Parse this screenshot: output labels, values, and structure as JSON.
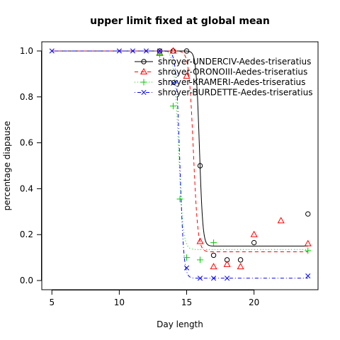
{
  "chart_data": {
    "type": "scatter",
    "title": "upper limit fixed at global mean",
    "xlabel": "Day length",
    "ylabel": "percentage diapause",
    "xlim": [
      4.25,
      24.75
    ],
    "ylim": [
      -0.04,
      1.04
    ],
    "x_ticks": [
      5,
      10,
      15,
      20
    ],
    "y_ticks": [
      0.0,
      0.2,
      0.4,
      0.6,
      0.8,
      1.0
    ],
    "legend_position": "top-right",
    "series": [
      {
        "name": "shroyer-UNDERCIV-Aedes-triseratius",
        "color": "#000000",
        "marker": "circle",
        "line_style": "solid",
        "fit": {
          "upper": 1.0,
          "lower": 0.15,
          "midpoint": 15.95,
          "slope": 8.0
        },
        "points": [
          {
            "x": 13,
            "y": 1.0
          },
          {
            "x": 14,
            "y": 1.0
          },
          {
            "x": 15,
            "y": 1.0
          },
          {
            "x": 16,
            "y": 0.5
          },
          {
            "x": 17,
            "y": 0.11
          },
          {
            "x": 18,
            "y": 0.09
          },
          {
            "x": 19,
            "y": 0.09
          },
          {
            "x": 20,
            "y": 0.165
          },
          {
            "x": 24,
            "y": 0.29
          }
        ]
      },
      {
        "name": "shroyer-ORONOIII-Aedes-triseratius",
        "color": "#ff0000",
        "marker": "triangle",
        "line_style": "dashed",
        "fit": {
          "upper": 1.0,
          "lower": 0.125,
          "midpoint": 15.5,
          "slope": 6.0
        },
        "points": [
          {
            "x": 13,
            "y": 0.99
          },
          {
            "x": 14,
            "y": 1.0
          },
          {
            "x": 15,
            "y": 0.89
          },
          {
            "x": 16,
            "y": 0.17
          },
          {
            "x": 17,
            "y": 0.06
          },
          {
            "x": 18,
            "y": 0.07
          },
          {
            "x": 19,
            "y": 0.06
          },
          {
            "x": 20,
            "y": 0.2
          },
          {
            "x": 22,
            "y": 0.26
          },
          {
            "x": 24,
            "y": 0.16
          }
        ]
      },
      {
        "name": "shroyer-KRAMERI-Aedes-triseratius",
        "color": "#00cc00",
        "marker": "plus",
        "line_style": "dotted",
        "fit": {
          "upper": 1.0,
          "lower": 0.135,
          "midpoint": 14.4,
          "slope": 6.0
        },
        "points": [
          {
            "x": 13,
            "y": 0.985
          },
          {
            "x": 14,
            "y": 0.76
          },
          {
            "x": 14.5,
            "y": 0.355
          },
          {
            "x": 15,
            "y": 0.1
          },
          {
            "x": 16,
            "y": 0.09
          },
          {
            "x": 17,
            "y": 0.165
          },
          {
            "x": 24,
            "y": 0.13
          }
        ]
      },
      {
        "name": "shroyer-BURDETTE-Aedes-triseratius",
        "color": "#0000ff",
        "marker": "x",
        "line_style": "dotdash",
        "fit": {
          "upper": 1.0,
          "lower": 0.01,
          "midpoint": 14.5,
          "slope": 7.0
        },
        "points": [
          {
            "x": 5,
            "y": 1.0
          },
          {
            "x": 10,
            "y": 1.0
          },
          {
            "x": 11,
            "y": 1.0
          },
          {
            "x": 12,
            "y": 1.0
          },
          {
            "x": 13,
            "y": 1.0
          },
          {
            "x": 14,
            "y": 0.86
          },
          {
            "x": 15,
            "y": 0.055
          },
          {
            "x": 16,
            "y": 0.01
          },
          {
            "x": 17,
            "y": 0.01
          },
          {
            "x": 18,
            "y": 0.01
          },
          {
            "x": 24,
            "y": 0.02
          }
        ]
      }
    ]
  }
}
